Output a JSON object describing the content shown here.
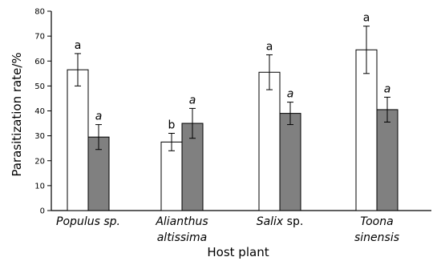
{
  "chart_data": {
    "type": "bar",
    "xlabel": "Host plant",
    "ylabel": "Parasitization rate/%",
    "ylim": [
      0,
      80
    ],
    "yticks": [
      0,
      10,
      20,
      30,
      40,
      50,
      60,
      70,
      80
    ],
    "grid": false,
    "legend": "none",
    "categories": [
      {
        "lines": [
          {
            "parts": [
              {
                "text": "Populus sp.",
                "italic": true
              }
            ]
          }
        ]
      },
      {
        "lines": [
          {
            "parts": [
              {
                "text": "Alianthus",
                "italic": true
              }
            ]
          },
          {
            "parts": [
              {
                "text": "altissima",
                "italic": true
              }
            ]
          }
        ]
      },
      {
        "lines": [
          {
            "parts": [
              {
                "text": "Salix",
                "italic": true
              },
              {
                "text": " sp.",
                "italic": false
              }
            ]
          }
        ]
      },
      {
        "lines": [
          {
            "parts": [
              {
                "text": "Toona",
                "italic": true
              }
            ]
          },
          {
            "parts": [
              {
                "text": "sinensis",
                "italic": true
              }
            ]
          }
        ]
      }
    ],
    "series": [
      {
        "fill": "#ffffff",
        "values": [
          56.5,
          27.5,
          55.5,
          64.5
        ],
        "errors": [
          6.5,
          3.5,
          7.0,
          9.5
        ],
        "labels": [
          "a",
          "b",
          "a",
          "a"
        ],
        "label_italic": false
      },
      {
        "fill": "#808080",
        "values": [
          29.5,
          35.0,
          39.0,
          40.5
        ],
        "errors": [
          5.0,
          6.0,
          4.5,
          5.0
        ],
        "labels": [
          "a",
          "a",
          "a",
          "a"
        ],
        "label_italic": true
      }
    ]
  }
}
